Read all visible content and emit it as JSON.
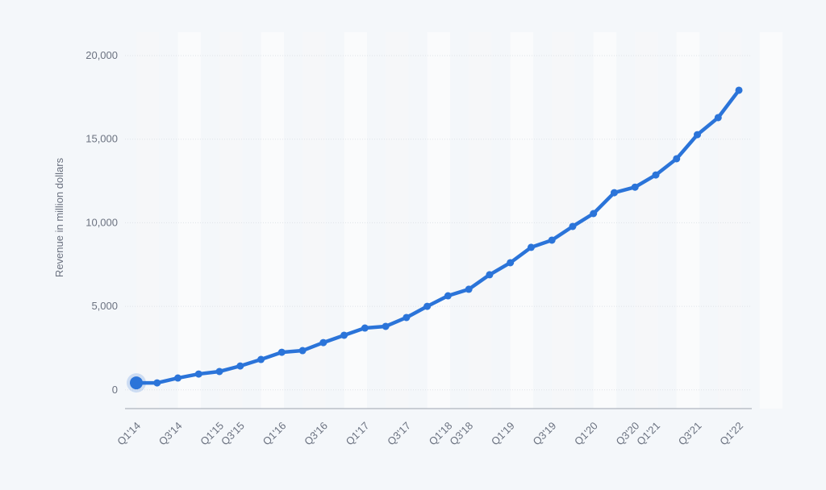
{
  "chart_data": {
    "type": "line",
    "y_label": "Revenue in million dollars",
    "categories": [
      "Q1'14",
      null,
      "Q3'14",
      null,
      "Q1'15",
      "Q3'15",
      null,
      "Q1'16",
      null,
      "Q3'16",
      null,
      "Q1'17",
      null,
      "Q3'17",
      null,
      "Q1'18",
      "Q3'18",
      null,
      "Q1'19",
      null,
      "Q3'19",
      null,
      "Q1'20",
      null,
      "Q3'20",
      "Q1'21",
      null,
      "Q3'21",
      null,
      "Q1'22"
    ],
    "series": [
      {
        "name": "Revenue",
        "color": "#2b74d9",
        "values": [
          420,
          420,
          710,
          950,
          1100,
          1430,
          1820,
          2250,
          2350,
          2830,
          3270,
          3700,
          3800,
          4330,
          5000,
          5630,
          6020,
          6890,
          7610,
          8530,
          8960,
          9780,
          10550,
          11800,
          12130,
          12860,
          13830,
          15270,
          16290,
          17930
        ]
      }
    ],
    "ylim": [
      -1120,
      21400
    ],
    "yticks": [
      0,
      {
        "value": 5000,
        "label": "5,000"
      },
      {
        "value": 10000,
        "label": "10,000"
      },
      {
        "value": 15000,
        "label": "15,000"
      },
      {
        "value": 20000,
        "label": "20,000"
      }
    ],
    "grid": true
  }
}
